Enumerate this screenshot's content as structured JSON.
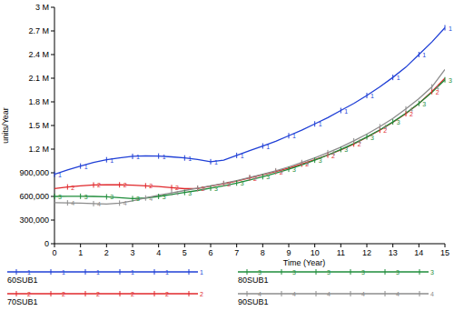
{
  "chart_data": {
    "type": "line",
    "x_label": "Time (Year)",
    "y_label": "units/Year",
    "xlim": [
      0,
      15
    ],
    "ylim": [
      0,
      3000000
    ],
    "xticks": [
      0,
      1,
      2,
      3,
      4,
      5,
      6,
      7,
      8,
      9,
      10,
      11,
      12,
      13,
      14,
      15
    ],
    "yticks": [
      0,
      {
        "value": 300000,
        "label": "300,000"
      },
      {
        "value": 600000,
        "label": "600,000"
      },
      {
        "value": 900000,
        "label": "900,000"
      },
      {
        "value": 1200000,
        "label": "1.2 M"
      },
      {
        "value": 1500000,
        "label": "1.5 M"
      },
      {
        "value": 1800000,
        "label": "1.8 M"
      },
      {
        "value": 2100000,
        "label": "2.1 M"
      },
      {
        "value": 2400000,
        "label": "2.4 M"
      },
      {
        "value": 2700000,
        "label": "2.7 M"
      },
      {
        "value": 3000000,
        "label": "3 M"
      }
    ],
    "grid": false,
    "legend": "bottom",
    "x": [
      0,
      0.5,
      1,
      1.5,
      2,
      2.5,
      3,
      3.5,
      4,
      4.5,
      5,
      5.5,
      6,
      6.5,
      7,
      7.5,
      8,
      8.5,
      9,
      9.5,
      10,
      10.5,
      11,
      11.5,
      12,
      12.5,
      13,
      13.5,
      14,
      14.5,
      15
    ],
    "series": [
      {
        "name": "60SUB1",
        "color": "#1f3fd6",
        "marker": "1",
        "values": [
          880000,
          935000,
          985000,
          1030000,
          1065000,
          1090000,
          1108000,
          1115000,
          1112000,
          1102000,
          1088000,
          1068000,
          1040000,
          1060000,
          1120000,
          1180000,
          1240000,
          1300000,
          1370000,
          1440000,
          1520000,
          1600000,
          1690000,
          1780000,
          1880000,
          1990000,
          2110000,
          2240000,
          2400000,
          2560000,
          2740000
        ]
      },
      {
        "name": "70SUB1",
        "color": "#e0272b",
        "marker": "2",
        "values": [
          700000,
          720000,
          735000,
          745000,
          748000,
          747000,
          742000,
          735000,
          725000,
          712000,
          698000,
          700000,
          730000,
          760000,
          795000,
          835000,
          875000,
          915000,
          960000,
          1010000,
          1065000,
          1125000,
          1190000,
          1265000,
          1350000,
          1440000,
          1540000,
          1650000,
          1780000,
          1930000,
          2100000
        ]
      },
      {
        "name": "80SUB1",
        "color": "#1e8c3a",
        "marker": "3",
        "values": [
          600000,
          602000,
          602000,
          600000,
          595000,
          585000,
          572000,
          580000,
          600000,
          625000,
          650000,
          675000,
          705000,
          735000,
          770000,
          810000,
          850000,
          895000,
          945000,
          1000000,
          1060000,
          1125000,
          1195000,
          1270000,
          1355000,
          1445000,
          1545000,
          1655000,
          1780000,
          1920000,
          2080000
        ]
      },
      {
        "name": "90SUB1",
        "color": "#8c8c8c",
        "marker": "4",
        "values": [
          520000,
          518000,
          514000,
          508000,
          503000,
          515000,
          545000,
          580000,
          615000,
          645000,
          675000,
          705000,
          735000,
          765000,
          800000,
          840000,
          880000,
          925000,
          975000,
          1030000,
          1090000,
          1155000,
          1225000,
          1305000,
          1390000,
          1485000,
          1590000,
          1710000,
          1840000,
          1990000,
          2210000
        ]
      }
    ]
  }
}
